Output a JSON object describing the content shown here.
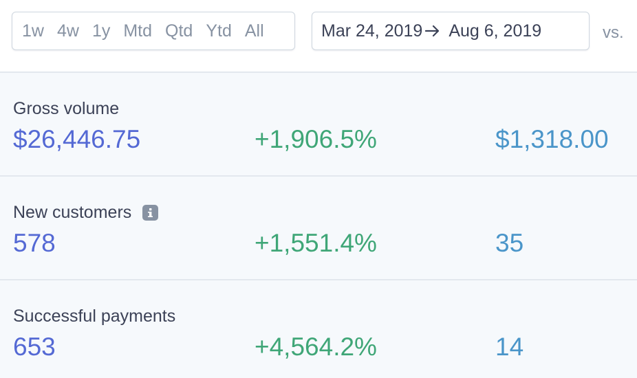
{
  "toolbar": {
    "ranges": [
      {
        "label": "1w"
      },
      {
        "label": "4w"
      },
      {
        "label": "1y"
      },
      {
        "label": "Mtd"
      },
      {
        "label": "Qtd"
      },
      {
        "label": "Ytd"
      },
      {
        "label": "All"
      }
    ],
    "date_range": {
      "start": "Mar 24, 2019",
      "end": "Aug 6, 2019"
    },
    "vs_label": "vs."
  },
  "metrics": [
    {
      "label": "Gross volume",
      "value": "$26,446.75",
      "change": "+1,906.5%",
      "compare": "$1,318.00",
      "has_info": false
    },
    {
      "label": "New customers",
      "value": "578",
      "change": "+1,551.4%",
      "compare": "35",
      "has_info": true
    },
    {
      "label": "Successful payments",
      "value": "653",
      "change": "+4,564.2%",
      "compare": "14",
      "has_info": false
    }
  ],
  "colors": {
    "value": "#5469d4",
    "change": "#3fa677",
    "compare": "#4a95c9",
    "muted": "#8792a2",
    "text": "#3c4257",
    "panel_bg": "#f6f9fc"
  }
}
